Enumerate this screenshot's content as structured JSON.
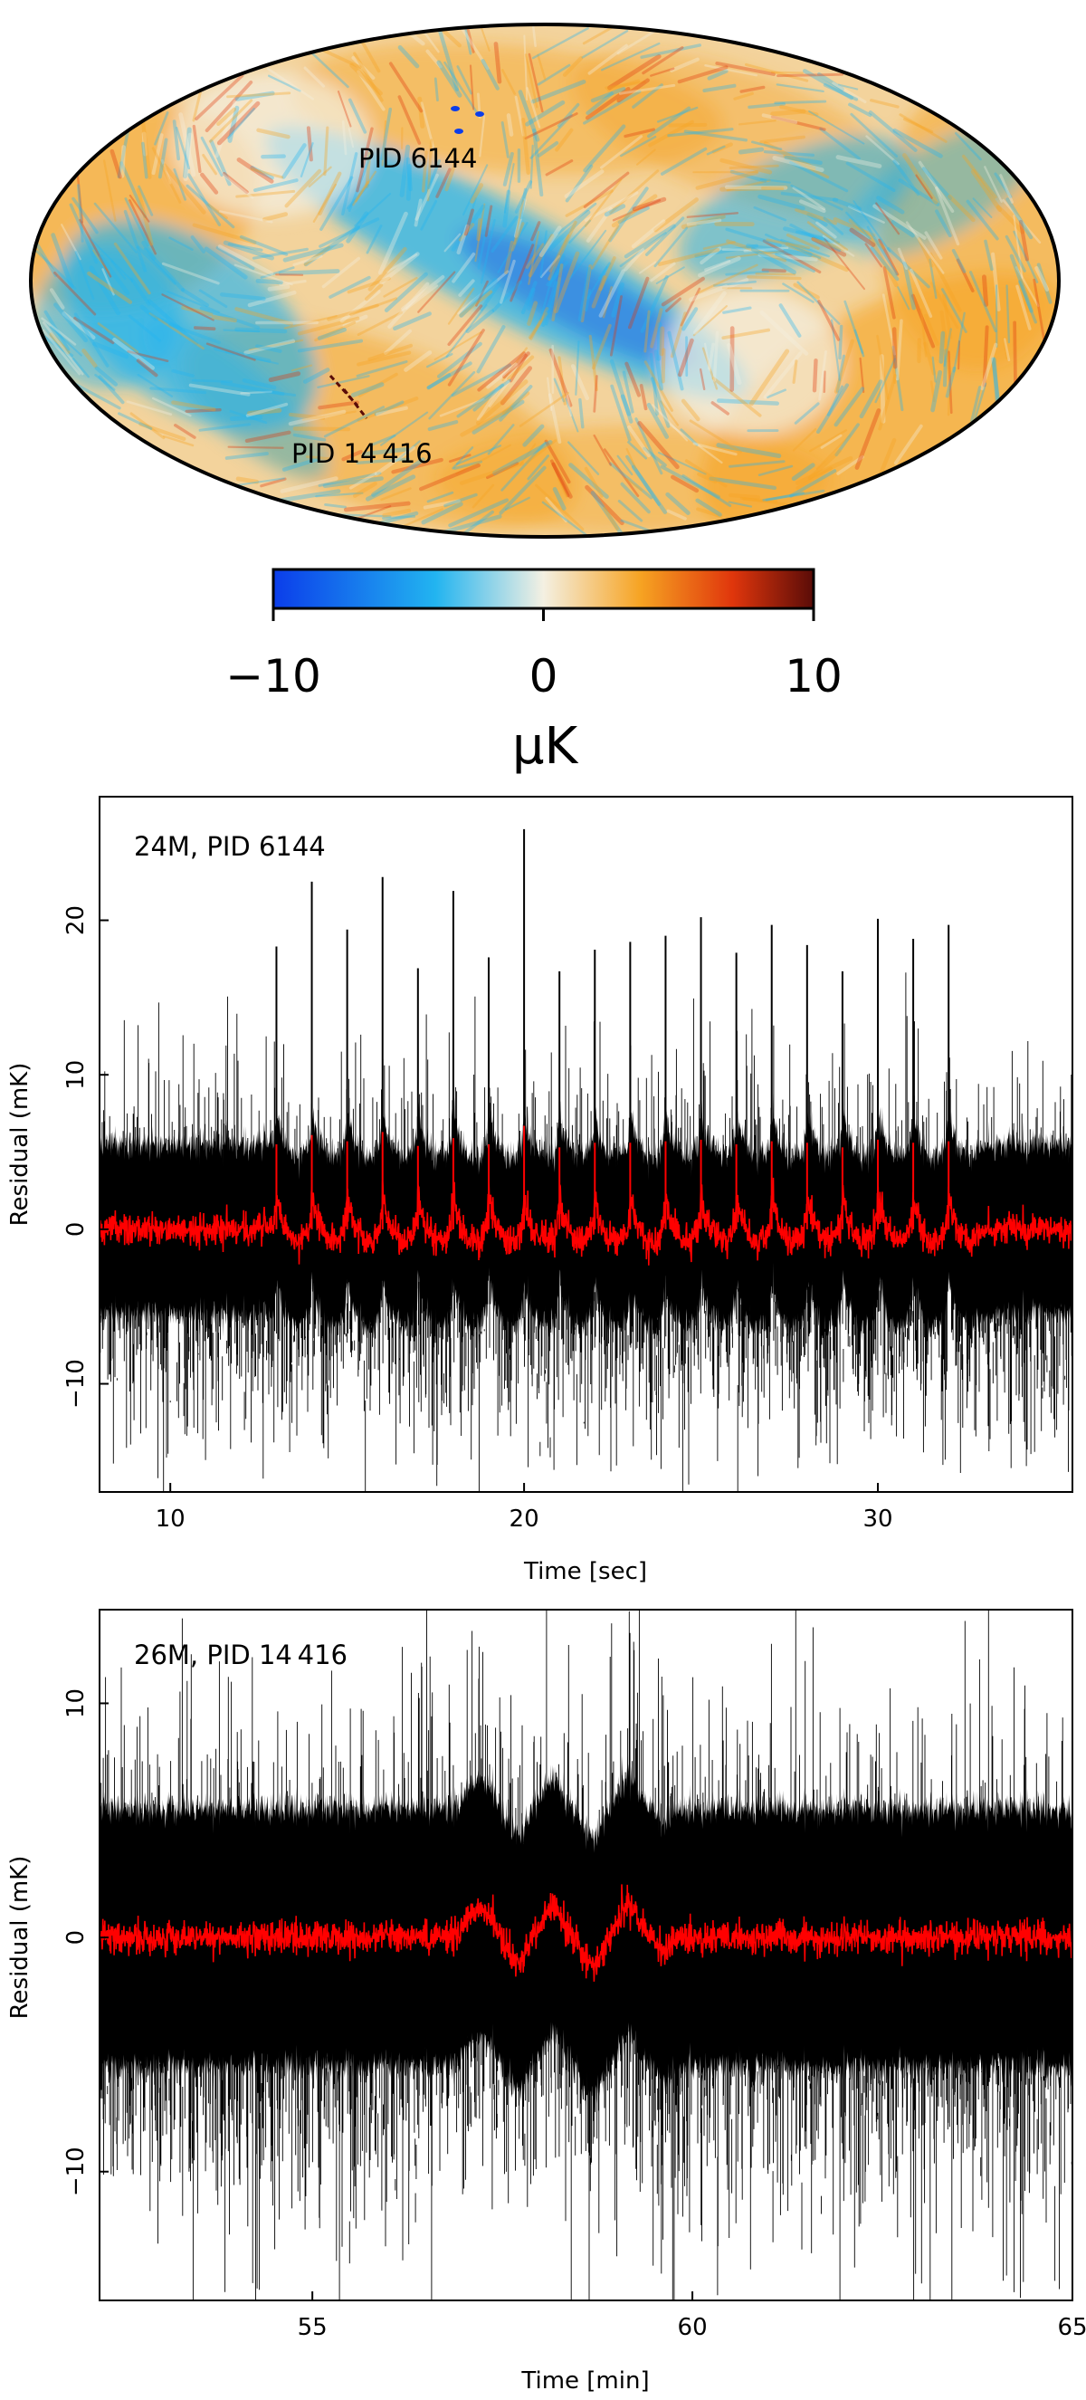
{
  "colors": {
    "cold": "#0b3dea",
    "cool": "#22b4f0",
    "neutral": "#f4f0e2",
    "warm": "#f6a322",
    "hot": "#e0360c",
    "extreme": "#5a0c08",
    "timestream_raw": "#000000",
    "timestream_smoothed": "#ff0000"
  },
  "chart_data": [
    {
      "type": "heatmap",
      "projection": "mollweide",
      "annotations": [
        "PID 6144",
        "PID 14 416"
      ],
      "colorbar": {
        "range": [
          -10,
          10
        ],
        "ticks": [
          -10,
          0,
          10
        ],
        "tick_labels": [
          "−10",
          "0",
          "10"
        ],
        "label": "μK",
        "colormap": [
          "#0b3dea",
          "#22b4f0",
          "#f4f0e2",
          "#f6a322",
          "#e0360c",
          "#5a0c08"
        ]
      }
    },
    {
      "type": "line",
      "annotation": "24M, PID 6144",
      "xlabel": "Time [sec]",
      "ylabel": "Residual (mK)",
      "xlim": [
        8,
        35.5
      ],
      "ylim": [
        -17,
        28
      ],
      "xticks": [
        10,
        20,
        30
      ],
      "yticks": [
        -10,
        0,
        10,
        20
      ],
      "ytick_labels": [
        "−10",
        "0",
        "10",
        "20"
      ],
      "series": [
        {
          "color": "#000000",
          "noise_std_approx": 3.2,
          "envelope_approx": [
            -10,
            10
          ]
        },
        {
          "color": "#ff0000",
          "noise_std_approx": 0.5
        }
      ],
      "spikes": {
        "x": [
          13,
          14,
          15,
          16,
          17,
          18,
          19,
          20,
          21,
          22,
          23,
          24,
          25,
          26,
          27,
          28,
          29,
          30,
          31,
          32
        ],
        "peak": [
          18.3,
          22.5,
          19.4,
          22.8,
          16.9,
          21.9,
          17.6,
          25.9,
          16.7,
          18.1,
          18.6,
          19.0,
          20.2,
          17.9,
          19.7,
          18.4,
          16.7,
          20.1,
          18.8,
          19.7
        ],
        "smoothed_peak": [
          5.5,
          6.1,
          5.7,
          6.3,
          5.4,
          5.9,
          5.5,
          6.7,
          5.3,
          5.6,
          5.6,
          5.7,
          5.8,
          5.5,
          5.7,
          5.6,
          5.3,
          5.8,
          5.6,
          5.7
        ]
      }
    },
    {
      "type": "line",
      "annotation": "26M, PID 14 416",
      "xlabel": "Time [min]",
      "ylabel": "Residual (mK)",
      "xlim": [
        52.2,
        65
      ],
      "ylim": [
        -15.5,
        14
      ],
      "xticks": [
        55,
        60,
        65
      ],
      "yticks": [
        -10,
        0,
        10
      ],
      "ytick_labels": [
        "−10",
        "0",
        "10"
      ],
      "series": [
        {
          "color": "#000000",
          "noise_std_approx": 2.9,
          "envelope_approx": [
            -10,
            10
          ]
        },
        {
          "color": "#ff0000",
          "noise_std_approx": 0.35
        }
      ],
      "features": {
        "x": [
          57.2,
          57.7,
          58.15,
          58.7,
          59.15,
          59.6
        ],
        "y": [
          1.5,
          -1.2,
          1.5,
          -1.3,
          1.5,
          -0.6
        ]
      }
    }
  ]
}
